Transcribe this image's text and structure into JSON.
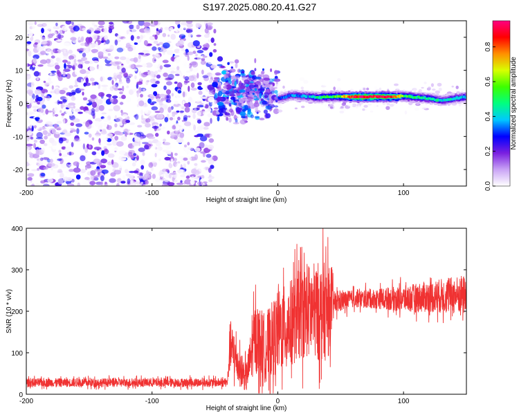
{
  "title": "S197.2025.080.20.41.G27",
  "chart_data": [
    {
      "type": "heatmap",
      "xlabel": "Height of straight line (km)",
      "ylabel": "Frequency (Hz)",
      "xlim": [
        -200,
        150
      ],
      "ylim": [
        -25,
        25
      ],
      "xticks": [
        -200,
        -100,
        0,
        100
      ],
      "yticks": [
        -20,
        -10,
        0,
        10,
        20
      ],
      "colorbar": {
        "label": "Normalized spectral amplitude",
        "ticks": [
          0.0,
          0.2,
          0.4,
          0.6,
          0.8
        ],
        "range": [
          0,
          0.95
        ],
        "colors": [
          "#ffffff",
          "#c9a3f5",
          "#7a1fe0",
          "#0000ff",
          "#00c8ff",
          "#00ff80",
          "#3cff00",
          "#d8ff00",
          "#ff9000",
          "#ff0000",
          "#ff0080"
        ]
      },
      "regions": [
        {
          "x": [
            -200,
            -50
          ],
          "description": "broadband noise",
          "amplitude": 0.1
        },
        {
          "x": [
            -50,
            0
          ],
          "description": "onset",
          "amplitude": 0.2
        },
        {
          "x": [
            0,
            150
          ],
          "description": "narrow band near 2 Hz",
          "center_freq": 2,
          "amplitude": 0.6
        }
      ],
      "ridge": {
        "x": [
          0,
          10,
          20,
          30,
          40,
          50,
          60,
          70,
          80,
          90,
          100,
          110,
          120,
          130,
          140,
          150
        ],
        "freq": [
          1.5,
          2.5,
          2.2,
          1.8,
          2.0,
          2.1,
          2.0,
          2.0,
          2.0,
          2.0,
          2.2,
          1.8,
          1.5,
          0.8,
          1.5,
          2.0
        ],
        "amp": [
          0.3,
          0.35,
          0.35,
          0.45,
          0.5,
          0.6,
          0.9,
          0.92,
          0.9,
          0.88,
          0.55,
          0.5,
          0.45,
          0.4,
          0.4,
          0.38
        ]
      }
    },
    {
      "type": "line",
      "xlabel": "Height of straight line (km)",
      "ylabel": "SNR (10 * v/v)",
      "xlim": [
        -200,
        150
      ],
      "ylim": [
        0,
        400
      ],
      "xticks": [
        -200,
        -100,
        0,
        100
      ],
      "yticks": [
        0,
        100,
        200,
        300,
        400
      ],
      "color": "#f03232",
      "envelope": {
        "x": [
          -200,
          -40,
          -38,
          -30,
          -25,
          -18,
          -10,
          0,
          10,
          20,
          30,
          40,
          45,
          60,
          80,
          100,
          120,
          150
        ],
        "mean": [
          28,
          28,
          120,
          60,
          40,
          140,
          110,
          150,
          170,
          200,
          200,
          200,
          220,
          230,
          230,
          230,
          235,
          240
        ],
        "spread": [
          15,
          15,
          90,
          60,
          50,
          120,
          120,
          140,
          150,
          160,
          170,
          170,
          40,
          30,
          35,
          45,
          55,
          70
        ]
      }
    }
  ]
}
